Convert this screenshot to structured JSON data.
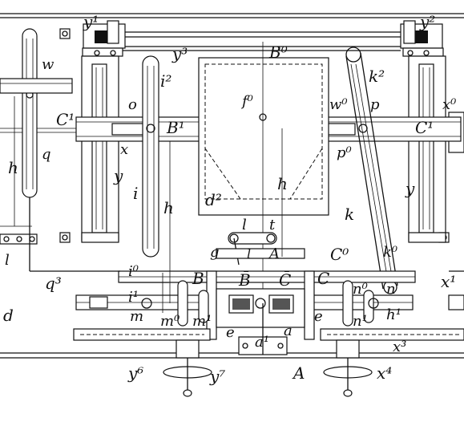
{
  "labels": {
    "y1": "y¹",
    "y2": "y²",
    "y3": "y³",
    "B0": "B⁰",
    "w": "w",
    "i2": "i²",
    "k2": "k²",
    "o": "o",
    "f0": "f⁰",
    "w0": "w⁰",
    "p": "p",
    "x0": "x⁰",
    "C1_left": "C¹",
    "C1_right": "C¹",
    "B1": "B¹",
    "x": "x",
    "p0": "p⁰",
    "q": "q",
    "h_left": "h",
    "y_left": "y",
    "y_right": "y",
    "i": "i",
    "h_mid": "h",
    "d2": "d²",
    "h_center": "h",
    "k": "k",
    "l_top": "l",
    "t": "t",
    "l_left": "l",
    "q3": "q³",
    "i0": "i⁰",
    "g": "g",
    "l_small": "l",
    "A_upper": "A",
    "C0": "C⁰",
    "k0": "k⁰",
    "x1": "x¹",
    "i1": "i¹",
    "B": "B",
    "B_bar": "B̄",
    "C_bar": "C̄",
    "C": "C",
    "n": "n",
    "n0": "n⁰",
    "d": "d",
    "m": "m",
    "m0": "m⁰",
    "m1": "m¹",
    "h1": "h¹",
    "n1": "n¹",
    "e_left": "e",
    "a1": "a¹",
    "a": "a",
    "e_right": "e",
    "x3": "x³",
    "y6": "y⁶",
    "y7": "y⁷",
    "A_lower": "A",
    "x4": "x⁴",
    "l_axis": "l"
  }
}
